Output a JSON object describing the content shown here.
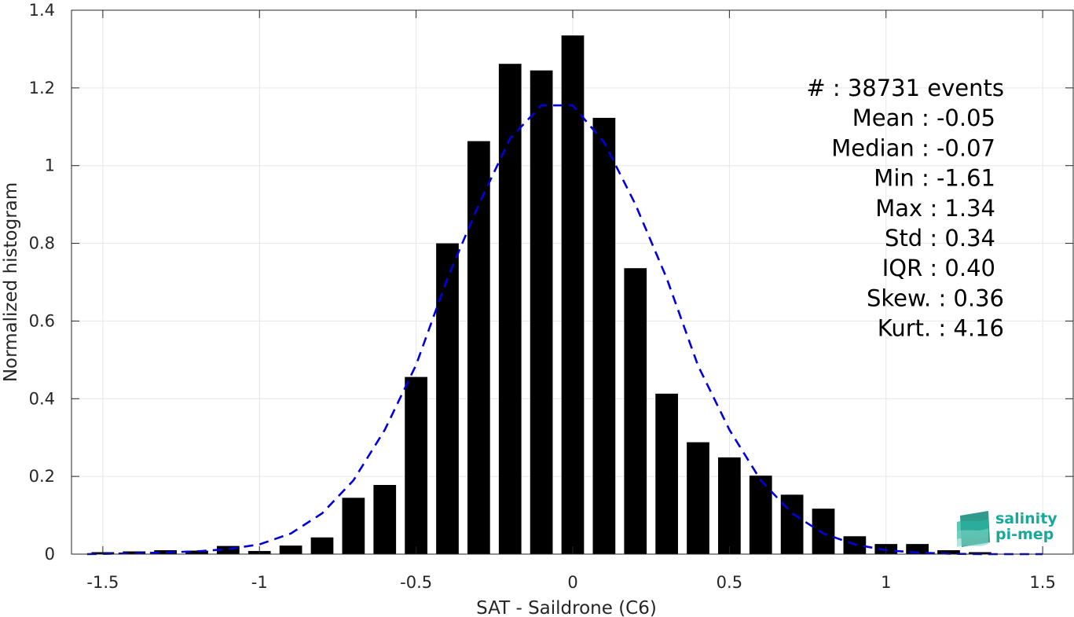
{
  "chart_data": {
    "type": "bar",
    "xlabel": "SAT - Saildrone (C6)",
    "ylabel": "Normalized histogram",
    "xlim": [
      -1.6,
      1.6
    ],
    "ylim": [
      0,
      1.4
    ],
    "xticks": [
      "-1.5",
      "-1",
      "-0.5",
      "0",
      "0.5",
      "1",
      "1.5"
    ],
    "xtick_values": [
      -1.5,
      -1,
      -0.5,
      0,
      0.5,
      1,
      1.5
    ],
    "yticks": [
      "0",
      "0.2",
      "0.4",
      "0.6",
      "0.8",
      "1",
      "1.2",
      "1.4"
    ],
    "ytick_values": [
      0,
      0.2,
      0.4,
      0.6,
      0.8,
      1.0,
      1.2,
      1.4
    ],
    "grid": true,
    "bar_color": "#000000",
    "fit_color": "#0000dd",
    "bins": {
      "centers": [
        -1.5,
        -1.4,
        -1.3,
        -1.2,
        -1.1,
        -1.0,
        -0.9,
        -0.8,
        -0.7,
        -0.6,
        -0.5,
        -0.4,
        -0.3,
        -0.2,
        -0.1,
        0.0,
        0.1,
        0.2,
        0.3,
        0.4,
        0.5,
        0.6,
        0.7,
        0.8,
        0.9,
        1.0,
        1.1,
        1.2,
        1.3
      ],
      "values": [
        0.005,
        0.007,
        0.01,
        0.009,
        0.021,
        0.008,
        0.022,
        0.043,
        0.145,
        0.178,
        0.456,
        0.8,
        1.063,
        1.262,
        1.245,
        1.335,
        1.123,
        0.736,
        0.413,
        0.288,
        0.249,
        0.202,
        0.153,
        0.117,
        0.046,
        0.026,
        0.026,
        0.01,
        0.005
      ]
    },
    "fit": {
      "x": [
        -1.55,
        -1.4,
        -1.2,
        -1.1,
        -1.0,
        -0.9,
        -0.8,
        -0.7,
        -0.6,
        -0.5,
        -0.4,
        -0.3,
        -0.2,
        -0.1,
        0.0,
        0.1,
        0.2,
        0.3,
        0.4,
        0.5,
        0.6,
        0.7,
        0.8,
        0.9,
        1.0,
        1.1,
        1.2,
        1.3,
        1.5
      ],
      "y": [
        0.0,
        0.002,
        0.007,
        0.013,
        0.025,
        0.053,
        0.105,
        0.19,
        0.32,
        0.487,
        0.71,
        0.9,
        1.07,
        1.155,
        1.155,
        1.06,
        0.9,
        0.71,
        0.485,
        0.32,
        0.19,
        0.105,
        0.053,
        0.025,
        0.01,
        0.004,
        0.001,
        0.0,
        0.0
      ]
    },
    "stats": [
      "#  : 38731 events",
      "Mean : -0.05",
      "Median : -0.07",
      "Min : -1.61",
      "Max : 1.34",
      "Std : 0.34",
      "IQR : 0.40",
      "Skew. : 0.36",
      "Kurt. : 4.16"
    ]
  },
  "logo": {
    "line1": "salinity",
    "line2": "pi-mep",
    "colors": [
      "#2bb3a0",
      "#7fd3c4",
      "#1a8f80"
    ]
  }
}
